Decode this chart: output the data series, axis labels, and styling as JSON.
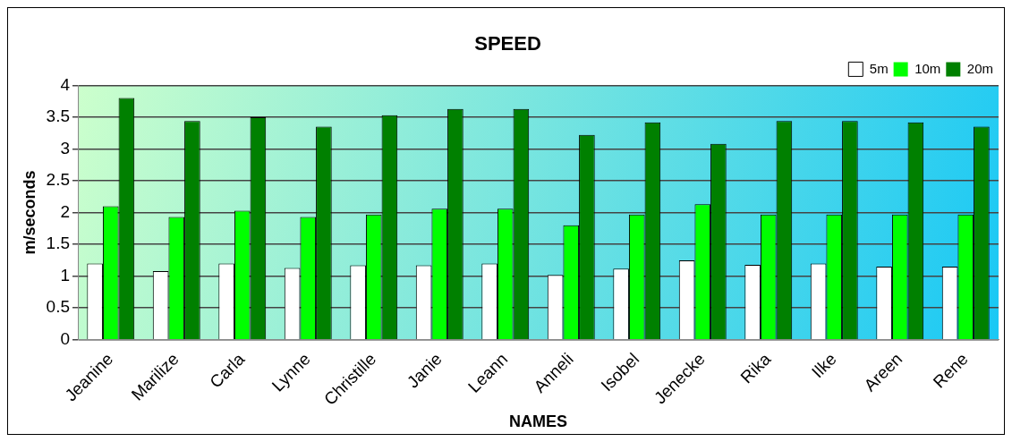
{
  "chart_data": {
    "type": "bar",
    "title": "SPEED",
    "xlabel": "NAMES",
    "ylabel": "m/seconds",
    "categories": [
      "Jeanine",
      "Marilize",
      "Carla",
      "Lynne",
      "Christille",
      "Janie",
      "Leann",
      "Anneli",
      "Isobel",
      "Jenecke",
      "Rika",
      "Ilke",
      "Areen",
      "Rene"
    ],
    "series": [
      {
        "name": "5m",
        "color": "#ffffff",
        "values": [
          1.2,
          1.08,
          1.2,
          1.13,
          1.17,
          1.17,
          1.2,
          1.02,
          1.12,
          1.25,
          1.18,
          1.2,
          1.15,
          1.15
        ]
      },
      {
        "name": "10m",
        "color": "#00ff00",
        "values": [
          2.1,
          1.93,
          2.03,
          1.93,
          1.97,
          2.06,
          2.06,
          1.8,
          1.97,
          2.13,
          1.97,
          1.97,
          1.97,
          1.97
        ]
      },
      {
        "name": "20m",
        "color": "#008000",
        "values": [
          3.8,
          3.44,
          3.5,
          3.35,
          3.53,
          3.63,
          3.63,
          3.22,
          3.42,
          3.08,
          3.44,
          3.44,
          3.42,
          3.35
        ]
      }
    ],
    "ylim": [
      0,
      4
    ],
    "yticks": [
      0,
      0.5,
      1,
      1.5,
      2,
      2.5,
      3,
      3.5,
      4
    ],
    "grid": "y",
    "legend": "top right"
  }
}
